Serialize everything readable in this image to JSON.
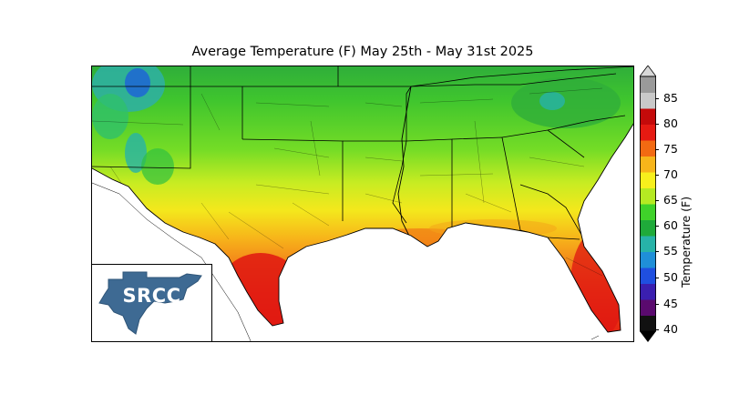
{
  "title": "Average Temperature (F) May 25th - May 31st 2025",
  "logo_text": "SRCC",
  "colorbar": {
    "label": "Temperature (F)",
    "ticks": [
      "85",
      "80",
      "75",
      "70",
      "65",
      "60",
      "55",
      "50",
      "45",
      "40"
    ],
    "min": 40,
    "max": 88,
    "colors": [
      "#111111",
      "#5a0a6e",
      "#3a1fb0",
      "#1f4fe0",
      "#1f8fd8",
      "#27b3a8",
      "#1faa3a",
      "#3fd22a",
      "#b5ea22",
      "#f7f01c",
      "#f7b51a",
      "#f26a12",
      "#e61a12",
      "#c40a0a",
      "#c9c9c9",
      "#9a9a9a"
    ]
  }
}
